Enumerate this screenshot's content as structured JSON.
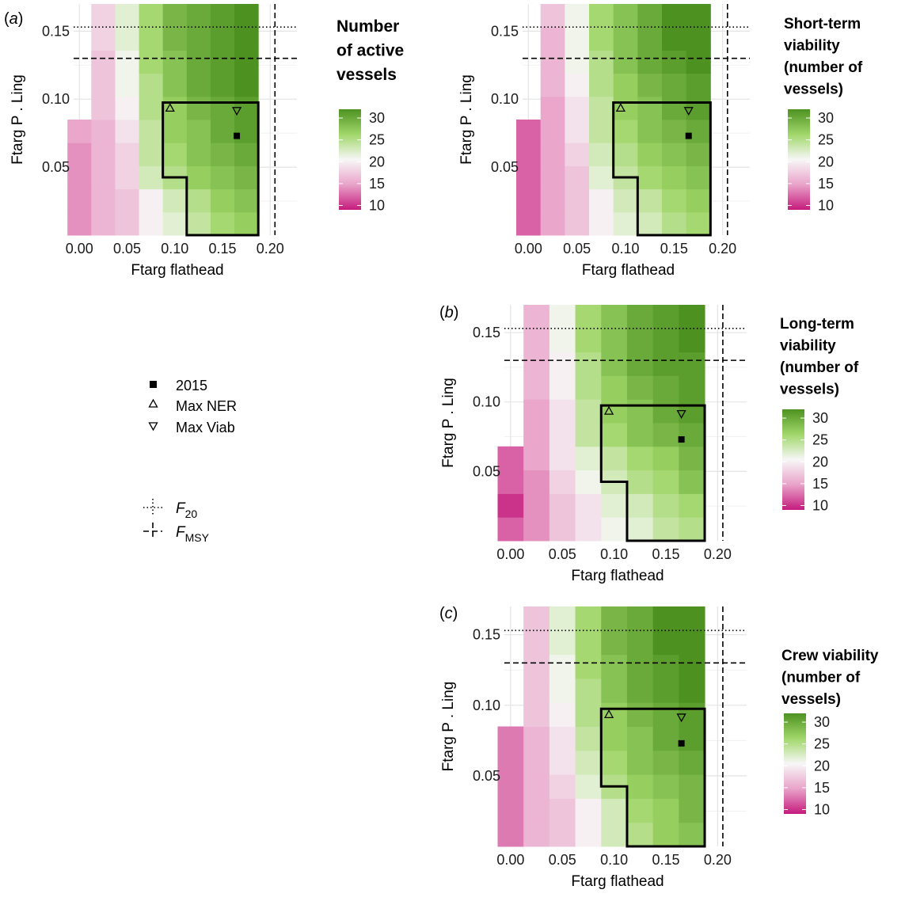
{
  "figure": {
    "panel_labels": [
      "(a)",
      "(b)",
      "(c)"
    ],
    "legend_items": [
      {
        "symbol": "square-filled-icon",
        "label": "2015"
      },
      {
        "symbol": "triangle-up-icon",
        "label": "Max NER"
      },
      {
        "symbol": "triangle-down-icon",
        "label": "Max Viab"
      }
    ],
    "ref_lines": [
      {
        "style": "dotted",
        "base": "F",
        "sub": "20"
      },
      {
        "style": "dashed",
        "base": "F",
        "sub": "MSY"
      }
    ]
  },
  "chart_data": [
    {
      "id": "active",
      "panel_label": "(a)",
      "type": "heatmap",
      "title_lines": [
        "Number",
        "of active",
        "vessels"
      ],
      "title_size": 21,
      "xlabel": "Ftarg flathead",
      "ylabel": "Ftarg P . Ling",
      "x_ticks": [
        "0.00",
        "0.05",
        "0.10",
        "0.15",
        "0.20"
      ],
      "y_ticks": [
        "0.05",
        "0.10",
        "0.15"
      ],
      "xlim": [
        -0.006,
        0.228
      ],
      "ylim": [
        0.0,
        0.17
      ],
      "colorbar": {
        "ticks": [
          10,
          15,
          20,
          25,
          30
        ],
        "range": [
          9,
          32
        ],
        "colors": [
          "#c51b7d",
          "#e9a3c9",
          "#f7f7f7",
          "#a1d76a",
          "#4d9221"
        ]
      },
      "x_centers": [
        0.0,
        0.025,
        0.05,
        0.075,
        0.1,
        0.125,
        0.15,
        0.175
      ],
      "y_centers": [
        0.0085,
        0.0255,
        0.0425,
        0.0595,
        0.0765,
        0.0935,
        0.1105,
        0.1275,
        0.1445,
        0.1615
      ],
      "grid": [
        [
          14,
          16,
          17,
          20,
          22,
          24,
          26,
          27
        ],
        [
          14,
          16,
          17,
          20,
          23,
          25,
          27,
          28
        ],
        [
          14,
          16,
          18,
          23,
          25,
          27,
          28,
          29
        ],
        [
          14,
          16,
          18,
          24,
          26,
          28,
          29,
          30
        ],
        [
          15,
          16,
          19,
          24,
          27,
          28,
          30,
          31
        ],
        [
          null,
          17,
          20,
          25,
          27,
          29,
          30,
          31
        ],
        [
          null,
          17,
          21,
          25,
          28,
          30,
          31,
          32
        ],
        [
          null,
          17,
          21,
          26,
          28,
          30,
          31,
          32
        ],
        [
          null,
          18,
          22,
          26,
          29,
          30,
          31,
          32
        ],
        [
          null,
          18,
          22,
          26,
          29,
          30,
          31,
          32
        ]
      ],
      "hlines": [
        {
          "y": 0.153,
          "style": "dotted"
        },
        {
          "y": 0.13,
          "style": "dashed"
        }
      ],
      "vlines": [
        {
          "x": 0.205,
          "style": "dashed"
        }
      ],
      "outline": [
        [
          0.1125,
          0.0
        ],
        [
          0.1125,
          0.0425
        ],
        [
          0.0875,
          0.0425
        ],
        [
          0.0875,
          0.0975
        ],
        [
          0.1875,
          0.0975
        ],
        [
          0.1875,
          0.0
        ]
      ],
      "points": [
        {
          "kind": "triangle-up",
          "label": "Max NER",
          "x": 0.095,
          "y": 0.0935
        },
        {
          "kind": "triangle-down",
          "label": "Max Viab",
          "x": 0.165,
          "y": 0.0915
        },
        {
          "kind": "square",
          "label": "2015",
          "x": 0.165,
          "y": 0.073
        }
      ]
    },
    {
      "id": "short",
      "panel_label": "",
      "type": "heatmap",
      "title_lines": [
        "Short-term",
        "viability",
        "(number of",
        "vessels)"
      ],
      "title_size": 19,
      "xlabel": "Ftarg flathead",
      "ylabel": "Ftarg P . Ling",
      "x_ticks": [
        "0.00",
        "0.05",
        "0.10",
        "0.15",
        "0.20"
      ],
      "y_ticks": [
        "0.05",
        "0.10",
        "0.15"
      ],
      "xlim": [
        -0.006,
        0.228
      ],
      "ylim": [
        0.0,
        0.17
      ],
      "colorbar": {
        "ticks": [
          10,
          15,
          20,
          25,
          30
        ],
        "range": [
          9,
          32
        ],
        "colors": [
          "#c51b7d",
          "#e9a3c9",
          "#f7f7f7",
          "#a1d76a",
          "#4d9221"
        ]
      },
      "x_centers": [
        0.0,
        0.025,
        0.05,
        0.075,
        0.1,
        0.125,
        0.15,
        0.175
      ],
      "y_centers": [
        0.0085,
        0.0255,
        0.0425,
        0.0595,
        0.0765,
        0.0935,
        0.1105,
        0.1275,
        0.1445,
        0.1615
      ],
      "grid": [
        [
          12,
          15,
          17,
          20,
          22,
          23,
          25,
          26
        ],
        [
          12,
          15,
          17,
          20,
          23,
          24,
          26,
          27
        ],
        [
          12,
          15,
          17,
          22,
          24,
          26,
          27,
          28
        ],
        [
          12,
          15,
          18,
          23,
          25,
          27,
          28,
          29
        ],
        [
          12,
          15,
          19,
          24,
          26,
          28,
          29,
          30
        ],
        [
          null,
          15,
          19,
          24,
          27,
          28,
          30,
          31
        ],
        [
          null,
          16,
          20,
          25,
          27,
          29,
          30,
          31
        ],
        [
          null,
          16,
          21,
          25,
          28,
          30,
          31,
          32
        ],
        [
          null,
          16,
          21,
          26,
          28,
          30,
          32,
          32
        ],
        [
          null,
          17,
          21,
          26,
          28,
          30,
          32,
          32
        ]
      ],
      "hlines": [
        {
          "y": 0.153,
          "style": "dotted"
        },
        {
          "y": 0.13,
          "style": "dashed"
        }
      ],
      "vlines": [
        {
          "x": 0.205,
          "style": "dashed"
        }
      ],
      "outline": [
        [
          0.1125,
          0.0
        ],
        [
          0.1125,
          0.0425
        ],
        [
          0.0875,
          0.0425
        ],
        [
          0.0875,
          0.0975
        ],
        [
          0.1875,
          0.0975
        ],
        [
          0.1875,
          0.0
        ]
      ],
      "points": [
        {
          "kind": "triangle-up",
          "label": "Max NER",
          "x": 0.095,
          "y": 0.0935
        },
        {
          "kind": "triangle-down",
          "label": "Max Viab",
          "x": 0.165,
          "y": 0.0915
        },
        {
          "kind": "square",
          "label": "2015",
          "x": 0.165,
          "y": 0.073
        }
      ]
    },
    {
      "id": "long",
      "panel_label": "(b)",
      "type": "heatmap",
      "title_lines": [
        "Long-term",
        "viability",
        "(number of",
        "vessels)"
      ],
      "title_size": 19,
      "xlabel": "Ftarg flathead",
      "ylabel": "Ftarg P . Ling",
      "x_ticks": [
        "0.00",
        "0.05",
        "0.10",
        "0.15",
        "0.20"
      ],
      "y_ticks": [
        "0.05",
        "0.10",
        "0.15"
      ],
      "xlim": [
        -0.006,
        0.228
      ],
      "ylim": [
        0.0,
        0.17
      ],
      "colorbar": {
        "ticks": [
          10,
          15,
          20,
          25,
          30
        ],
        "range": [
          9,
          32
        ],
        "colors": [
          "#c51b7d",
          "#e9a3c9",
          "#f7f7f7",
          "#a1d76a",
          "#4d9221"
        ]
      },
      "x_centers": [
        0.0,
        0.025,
        0.05,
        0.075,
        0.1,
        0.125,
        0.15,
        0.175
      ],
      "y_centers": [
        0.0085,
        0.0255,
        0.0425,
        0.0595,
        0.0765,
        0.0935,
        0.1105,
        0.1275,
        0.1445,
        0.1615
      ],
      "grid": [
        [
          12,
          14,
          17,
          19,
          21,
          22,
          24,
          25
        ],
        [
          10,
          14,
          17,
          19,
          22,
          23,
          25,
          26
        ],
        [
          12,
          14,
          18,
          21,
          23,
          25,
          26,
          28
        ],
        [
          12,
          15,
          19,
          22,
          24,
          26,
          27,
          29
        ],
        [
          null,
          15,
          19,
          24,
          26,
          28,
          29,
          30
        ],
        [
          null,
          15,
          19,
          24,
          27,
          28,
          30,
          31
        ],
        [
          null,
          16,
          20,
          25,
          27,
          29,
          30,
          31
        ],
        [
          null,
          16,
          20,
          25,
          28,
          30,
          31,
          31
        ],
        [
          null,
          16,
          21,
          26,
          28,
          30,
          31,
          32
        ],
        [
          null,
          16,
          21,
          26,
          28,
          30,
          31,
          32
        ]
      ],
      "hlines": [
        {
          "y": 0.153,
          "style": "dotted"
        },
        {
          "y": 0.13,
          "style": "dashed"
        }
      ],
      "vlines": [
        {
          "x": 0.205,
          "style": "dashed"
        }
      ],
      "outline": [
        [
          0.1125,
          0.0
        ],
        [
          0.1125,
          0.0425
        ],
        [
          0.0875,
          0.0425
        ],
        [
          0.0875,
          0.0975
        ],
        [
          0.1875,
          0.0975
        ],
        [
          0.1875,
          0.0
        ]
      ],
      "points": [
        {
          "kind": "triangle-up",
          "label": "Max NER",
          "x": 0.095,
          "y": 0.0935
        },
        {
          "kind": "triangle-down",
          "label": "Max Viab",
          "x": 0.165,
          "y": 0.0915
        },
        {
          "kind": "square",
          "label": "2015",
          "x": 0.165,
          "y": 0.073
        }
      ]
    },
    {
      "id": "crew",
      "panel_label": "(c)",
      "type": "heatmap",
      "title_lines": [
        "Crew viability",
        "(number of",
        "vessels)"
      ],
      "title_size": 19,
      "xlabel": "Ftarg flathead",
      "ylabel": "Ftarg P . Ling",
      "x_ticks": [
        "0.00",
        "0.05",
        "0.10",
        "0.15",
        "0.20"
      ],
      "y_ticks": [
        "0.05",
        "0.10",
        "0.15"
      ],
      "xlim": [
        -0.006,
        0.228
      ],
      "ylim": [
        0.0,
        0.17
      ],
      "colorbar": {
        "ticks": [
          10,
          15,
          20,
          25,
          30
        ],
        "range": [
          9,
          32
        ],
        "colors": [
          "#c51b7d",
          "#e9a3c9",
          "#f7f7f7",
          "#a1d76a",
          "#4d9221"
        ]
      },
      "x_centers": [
        0.0,
        0.025,
        0.05,
        0.075,
        0.1,
        0.125,
        0.15,
        0.175
      ],
      "y_centers": [
        0.0085,
        0.0255,
        0.0425,
        0.0595,
        0.0765,
        0.0935,
        0.1105,
        0.1275,
        0.1445,
        0.1615
      ],
      "grid": [
        [
          13,
          16,
          17,
          20,
          23,
          25,
          27,
          28
        ],
        [
          13,
          16,
          17,
          20,
          23,
          26,
          27,
          29
        ],
        [
          13,
          16,
          18,
          22,
          25,
          27,
          28,
          29
        ],
        [
          13,
          16,
          19,
          23,
          26,
          28,
          29,
          30
        ],
        [
          13,
          16,
          19,
          24,
          27,
          28,
          30,
          31
        ],
        [
          null,
          17,
          20,
          25,
          27,
          29,
          30,
          31
        ],
        [
          null,
          17,
          21,
          25,
          28,
          30,
          31,
          32
        ],
        [
          null,
          17,
          21,
          26,
          28,
          30,
          31,
          32
        ],
        [
          null,
          17,
          22,
          26,
          29,
          30,
          32,
          32
        ],
        [
          null,
          17,
          22,
          26,
          29,
          30,
          32,
          32
        ]
      ],
      "hlines": [
        {
          "y": 0.153,
          "style": "dotted"
        },
        {
          "y": 0.13,
          "style": "dashed"
        }
      ],
      "vlines": [
        {
          "x": 0.205,
          "style": "dashed"
        }
      ],
      "outline": [
        [
          0.1125,
          0.0
        ],
        [
          0.1125,
          0.0425
        ],
        [
          0.0875,
          0.0425
        ],
        [
          0.0875,
          0.0975
        ],
        [
          0.1875,
          0.0975
        ],
        [
          0.1875,
          0.0
        ]
      ],
      "points": [
        {
          "kind": "triangle-up",
          "label": "Max NER",
          "x": 0.095,
          "y": 0.0935
        },
        {
          "kind": "triangle-down",
          "label": "Max Viab",
          "x": 0.165,
          "y": 0.0915
        },
        {
          "kind": "square",
          "label": "2015",
          "x": 0.165,
          "y": 0.073
        }
      ]
    }
  ]
}
